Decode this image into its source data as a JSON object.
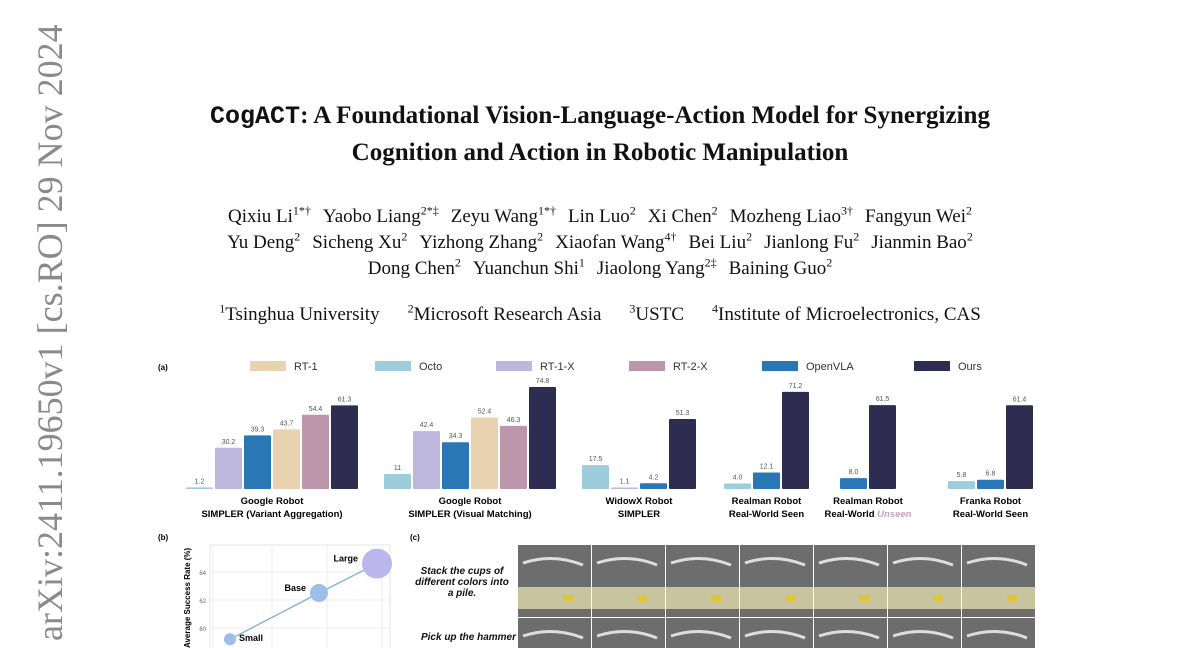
{
  "stamp": "arXiv:2411.19650v1 [cs.RO] 29 Nov 2024",
  "title": {
    "name": "CogACT",
    "rest_line1": ": A Foundational Vision-Language-Action Model for Synergizing",
    "line2": "Cognition and Action in Robotic Manipulation"
  },
  "authors": [
    [
      [
        "Qixiu Li",
        "1*†"
      ],
      [
        "Yaobo Liang",
        "2*‡"
      ],
      [
        "Zeyu Wang",
        "1*†"
      ],
      [
        "Lin Luo",
        "2"
      ],
      [
        "Xi Chen",
        "2"
      ],
      [
        "Mozheng Liao",
        "3†"
      ],
      [
        "Fangyun Wei",
        "2"
      ]
    ],
    [
      [
        "Yu Deng",
        "2"
      ],
      [
        "Sicheng Xu",
        "2"
      ],
      [
        "Yizhong Zhang",
        "2"
      ],
      [
        "Xiaofan Wang",
        "4†"
      ],
      [
        "Bei Liu",
        "2"
      ],
      [
        "Jianlong Fu",
        "2"
      ],
      [
        "Jianmin Bao",
        "2"
      ]
    ],
    [
      [
        "Dong Chen",
        "2"
      ],
      [
        "Yuanchun Shi",
        "1"
      ],
      [
        "Jiaolong Yang",
        "2‡"
      ],
      [
        "Baining Guo",
        "2"
      ]
    ]
  ],
  "affiliations": [
    [
      "1",
      "Tsinghua University"
    ],
    [
      "2",
      "Microsoft Research Asia"
    ],
    [
      "3",
      "USTC"
    ],
    [
      "4",
      "Institute of Microelectronics, CAS"
    ]
  ],
  "chart_data": [
    {
      "type": "bar",
      "panel": "(a)",
      "legend": [
        {
          "name": "RT-1",
          "color": "#e8d2b0"
        },
        {
          "name": "Octo",
          "color": "#9dcddc"
        },
        {
          "name": "RT-1-X",
          "color": "#bdb6dd"
        },
        {
          "name": "RT-2-X",
          "color": "#bd96ab"
        },
        {
          "name": "OpenVLA",
          "color": "#2a77b5"
        },
        {
          "name": "Ours",
          "color": "#2e2c50"
        }
      ],
      "legend_placement": "top",
      "groups": [
        {
          "label": [
            "Google Robot",
            "SIMPLER (Variant Aggregation)"
          ],
          "bars": [
            [
              "Octo",
              1.2,
              "1.2"
            ],
            [
              "RT-1-X",
              30.2,
              "30.2"
            ],
            [
              "OpenVLA",
              39.3,
              "39.3"
            ],
            [
              "RT-1",
              43.7,
              "43.7"
            ],
            [
              "RT-2-X",
              54.4,
              "54.4"
            ],
            [
              "Ours",
              61.3,
              "61.3"
            ]
          ]
        },
        {
          "label": [
            "Google Robot",
            "SIMPLER (Visual Matching)"
          ],
          "bars": [
            [
              "Octo",
              11,
              "11"
            ],
            [
              "RT-1-X",
              42.4,
              "42.4"
            ],
            [
              "OpenVLA",
              34.3,
              "34.3"
            ],
            [
              "RT-1",
              52.4,
              "52.4"
            ],
            [
              "RT-2-X",
              46.3,
              "46.3"
            ],
            [
              "Ours",
              74.8,
              "74.8"
            ]
          ]
        },
        {
          "label": [
            "WidowX Robot",
            "SIMPLER"
          ],
          "bars": [
            [
              "Octo",
              17.5,
              "17.5"
            ],
            [
              "RT-1-X",
              1.1,
              "1.1"
            ],
            [
              "OpenVLA",
              4.2,
              "4.2"
            ],
            [
              "Ours",
              51.3,
              "51.3"
            ]
          ]
        },
        {
          "label": [
            "Realman Robot",
            "Real-World Seen"
          ],
          "bars": [
            [
              "Octo",
              4.0,
              "4.0"
            ],
            [
              "OpenVLA",
              12.1,
              "12.1"
            ],
            [
              "Ours",
              71.2,
              "71.2"
            ]
          ]
        },
        {
          "label": [
            "Realman Robot",
            "Real-World ",
            "Unseen"
          ],
          "bars": [
            [
              "OpenVLA",
              8.0,
              "8.0"
            ],
            [
              "Ours",
              61.5,
              "61.5"
            ]
          ]
        },
        {
          "label": [
            "Franka Robot",
            "Real-World Seen"
          ],
          "bars": [
            [
              "Octo",
              5.8,
              "5.8"
            ],
            [
              "OpenVLA",
              6.8,
              "6.8"
            ],
            [
              "Ours",
              61.4,
              "61.4"
            ]
          ]
        }
      ],
      "unseen_color": "#c9a0b8"
    },
    {
      "type": "scatter",
      "panel": "(b)",
      "ylabel": "Average Success Rate (%)",
      "yticks": [
        "64",
        "62",
        "60"
      ],
      "points": [
        {
          "label": "Small",
          "y": 59.2,
          "color": "#9bbfe6"
        },
        {
          "label": "Base",
          "y": 62.5,
          "color": "#9bbfe6"
        },
        {
          "label": "Large",
          "y": 64.6,
          "color": "#bbb6ec"
        }
      ],
      "line_color": "#7fb2cc"
    }
  ],
  "panel_c": {
    "label": "(c)",
    "tasks": [
      "Stack the cups of different colors into a pile.",
      "Pick up the hammer"
    ]
  }
}
